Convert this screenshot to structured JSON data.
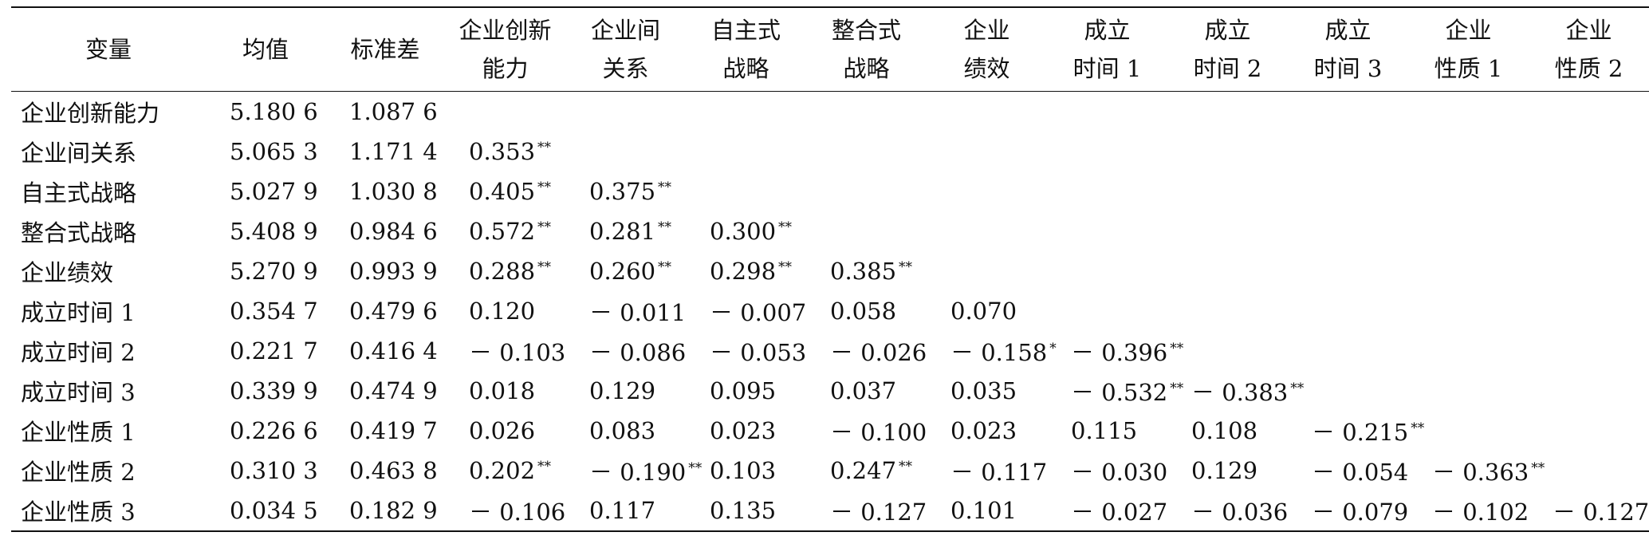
{
  "table": {
    "header": [
      "变量",
      "均值",
      "标准差",
      "企业创新\n能力",
      "企业间\n关系",
      "自主式\n战略",
      "整合式\n战略",
      "企业\n绩效",
      "成立\n时间 1",
      "成立\n时间 2",
      "成立\n时间 3",
      "企业\n性质 1",
      "企业\n性质 2"
    ],
    "rows": [
      [
        "企业创新能力",
        "5.180 6",
        "1.087 6",
        "",
        "",
        "",
        "",
        "",
        "",
        "",
        "",
        "",
        ""
      ],
      [
        "企业间关系",
        "5.065 3",
        "1.171 4",
        "0.353 **",
        "",
        "",
        "",
        "",
        "",
        "",
        "",
        "",
        ""
      ],
      [
        "自主式战略",
        "5.027 9",
        "1.030 8",
        "0.405 **",
        "0.375 **",
        "",
        "",
        "",
        "",
        "",
        "",
        "",
        ""
      ],
      [
        "整合式战略",
        "5.408 9",
        "0.984 6",
        "0.572 **",
        "0.281 **",
        "0.300 **",
        "",
        "",
        "",
        "",
        "",
        "",
        ""
      ],
      [
        "企业绩效",
        "5.270 9",
        "0.993 9",
        "0.288 **",
        "0.260 **",
        "0.298 **",
        "0.385 **",
        "",
        "",
        "",
        "",
        "",
        ""
      ],
      [
        "成立时间 1",
        "0.354 7",
        "0.479 6",
        "0.120",
        "－ 0.011",
        "－ 0.007",
        "0.058",
        "0.070",
        "",
        "",
        "",
        "",
        ""
      ],
      [
        "成立时间 2",
        "0.221 7",
        "0.416 4",
        "－ 0.103",
        "－ 0.086",
        "－ 0.053",
        "－ 0.026",
        "－ 0.158 *",
        "－ 0.396 **",
        "",
        "",
        "",
        ""
      ],
      [
        "成立时间 3",
        "0.339 9",
        "0.474 9",
        "0.018",
        "0.129",
        "0.095",
        "0.037",
        "0.035",
        "－ 0.532 **",
        "－ 0.383 **",
        "",
        "",
        ""
      ],
      [
        "企业性质 1",
        "0.226 6",
        "0.419 7",
        "0.026",
        "0.083",
        "0.023",
        "－ 0.100",
        "0.023",
        "0.115",
        "0.108",
        "－ 0.215 **",
        "",
        ""
      ],
      [
        "企业性质 2",
        "0.310 3",
        "0.463 8",
        "0.202 **",
        "－ 0.190 **",
        "0.103",
        "0.247 **",
        "－ 0.117",
        "－ 0.030",
        "0.129",
        "－ 0.054",
        "－ 0.363 **",
        ""
      ],
      [
        "企业性质 3",
        "0.034 5",
        "0.182 9",
        "－ 0.106",
        "0.117",
        "0.135",
        "－ 0.127",
        "0.101",
        "－ 0.027",
        "－ 0.036",
        "－ 0.079",
        "－ 0.102",
        "－ 0.127"
      ]
    ]
  }
}
